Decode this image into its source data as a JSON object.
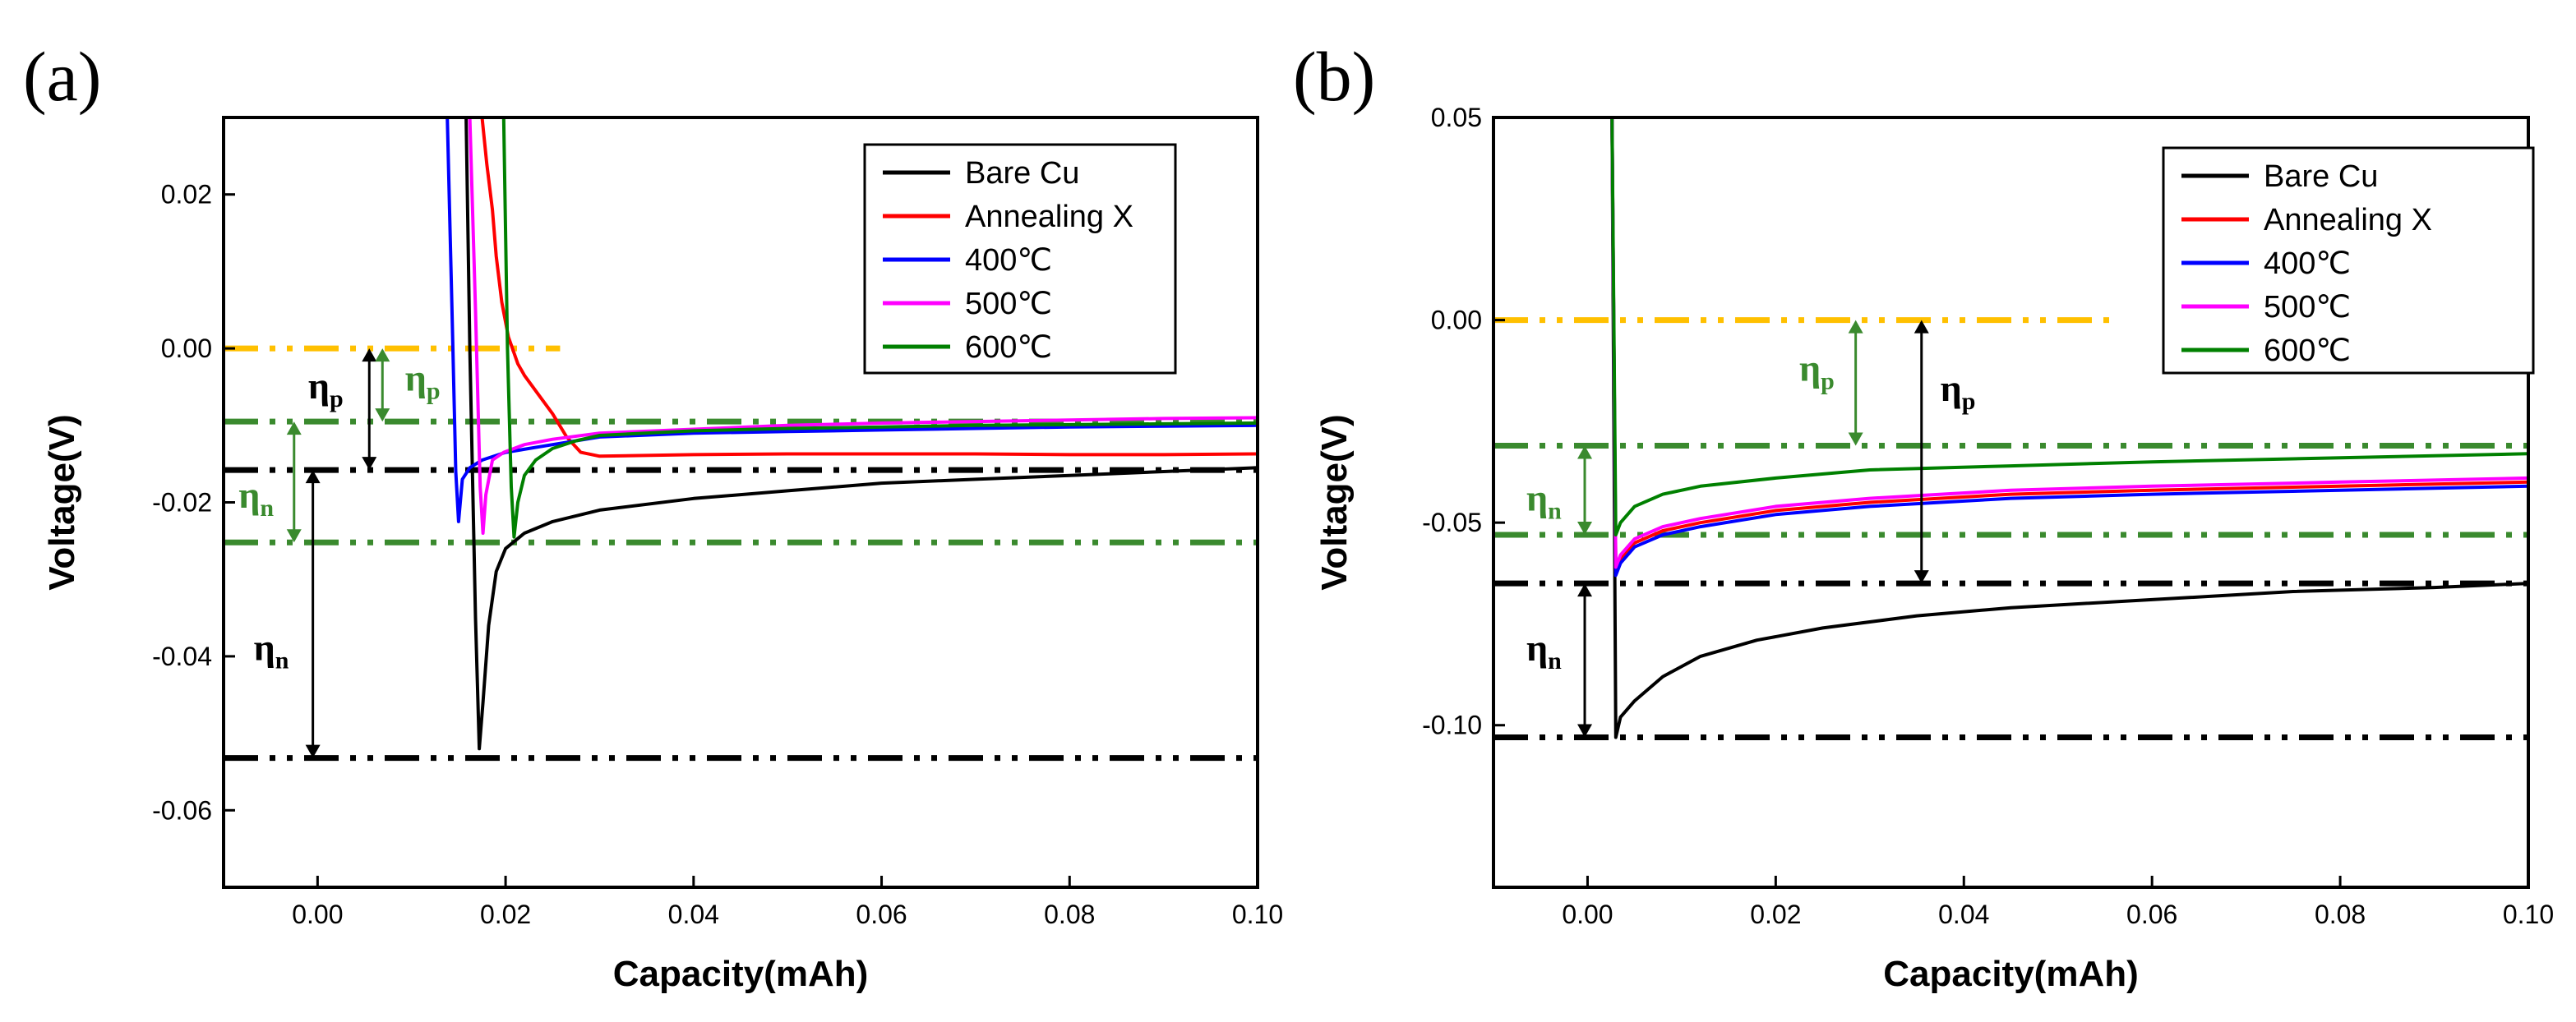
{
  "colors": {
    "black": "#000000",
    "red": "#ff0000",
    "blue": "#0000ff",
    "magenta": "#ff00ff",
    "green": "#008000",
    "ref_zero": "#ffc000",
    "ref_green": "#3a8a2e",
    "ref_black": "#000000",
    "eta_green": "#3a8a2e"
  },
  "chart_data": [
    {
      "type": "line",
      "panel_label": "(a)",
      "xlabel": "Capacity(mAh)",
      "ylabel": "Voltage(V)",
      "xlim": [
        -0.01,
        0.1
      ],
      "ylim": [
        -0.07,
        0.03
      ],
      "xticks": [
        0.0,
        0.02,
        0.04,
        0.06,
        0.08,
        0.1
      ],
      "xtick_labels": [
        "0.00",
        "0.02",
        "0.04",
        "0.06",
        "0.08",
        "0.10"
      ],
      "yticks": [
        0.02,
        0.0,
        -0.02,
        -0.04,
        -0.06
      ],
      "ytick_labels": [
        "0.02",
        "0.00",
        "-0.02",
        "-0.04",
        "-0.06"
      ],
      "legend": [
        "Bare Cu",
        "Annealing X",
        "400℃",
        "500℃",
        "600℃"
      ],
      "series": [
        {
          "name": "Bare Cu",
          "color": "#000000",
          "x": [
            0.0158,
            0.0162,
            0.0168,
            0.0172,
            0.0176,
            0.0182,
            0.019,
            0.02,
            0.022,
            0.025,
            0.03,
            0.04,
            0.05,
            0.06,
            0.07,
            0.08,
            0.09,
            0.1
          ],
          "y": [
            0.03,
            0.0,
            -0.035,
            -0.052,
            -0.046,
            -0.036,
            -0.029,
            -0.026,
            -0.024,
            -0.0225,
            -0.021,
            -0.0195,
            -0.0185,
            -0.0175,
            -0.017,
            -0.0165,
            -0.016,
            -0.0155
          ]
        },
        {
          "name": "Annealing X",
          "color": "#ff0000",
          "x": [
            0.0175,
            0.018,
            0.0186,
            0.019,
            0.0196,
            0.0203,
            0.0213,
            0.022,
            0.0235,
            0.025,
            0.0265,
            0.028,
            0.03,
            0.04,
            0.05,
            0.06,
            0.07,
            0.08,
            0.09,
            0.1
          ],
          "y": [
            0.03,
            0.024,
            0.018,
            0.012,
            0.006,
            0.0015,
            -0.002,
            -0.0035,
            -0.006,
            -0.0085,
            -0.0115,
            -0.0135,
            -0.014,
            -0.0138,
            -0.0137,
            -0.0137,
            -0.0137,
            -0.0138,
            -0.0138,
            -0.0137
          ]
        },
        {
          "name": "400℃",
          "color": "#0000ff",
          "x": [
            0.0138,
            0.0143,
            0.0147,
            0.015,
            0.0154,
            0.0162,
            0.0175,
            0.02,
            0.025,
            0.03,
            0.04,
            0.05,
            0.06,
            0.07,
            0.08,
            0.09,
            0.1
          ],
          "y": [
            0.03,
            0.005,
            -0.016,
            -0.0225,
            -0.017,
            -0.0155,
            -0.0145,
            -0.0135,
            -0.0125,
            -0.0115,
            -0.011,
            -0.0108,
            -0.0106,
            -0.0104,
            -0.0102,
            -0.0101,
            -0.01
          ]
        },
        {
          "name": "500℃",
          "color": "#ff00ff",
          "x": [
            0.0162,
            0.0168,
            0.0173,
            0.0176,
            0.0179,
            0.0186,
            0.0198,
            0.022,
            0.025,
            0.03,
            0.04,
            0.05,
            0.06,
            0.07,
            0.08,
            0.09,
            0.1
          ],
          "y": [
            0.03,
            0.005,
            -0.018,
            -0.024,
            -0.019,
            -0.0145,
            -0.0135,
            -0.0125,
            -0.0118,
            -0.011,
            -0.0105,
            -0.01,
            -0.0097,
            -0.0095,
            -0.0093,
            -0.0091,
            -0.009
          ]
        },
        {
          "name": "600℃",
          "color": "#008000",
          "x": [
            0.0198,
            0.0202,
            0.0206,
            0.0209,
            0.0213,
            0.022,
            0.0232,
            0.025,
            0.0275,
            0.03,
            0.04,
            0.05,
            0.06,
            0.07,
            0.08,
            0.09,
            0.1
          ],
          "y": [
            0.03,
            0.0,
            -0.018,
            -0.0245,
            -0.02,
            -0.0165,
            -0.0145,
            -0.013,
            -0.012,
            -0.0113,
            -0.0107,
            -0.0104,
            -0.0102,
            -0.01,
            -0.0099,
            -0.0098,
            -0.0097
          ]
        }
      ],
      "reference_lines": [
        {
          "y": 0.0,
          "color": "#ffc000",
          "x_end": 0.0258
        },
        {
          "y": -0.0095,
          "color": "#3a8a2e",
          "x_end": 0.1
        },
        {
          "y": -0.0158,
          "color": "#000000",
          "x_end": 0.1
        },
        {
          "y": -0.0252,
          "color": "#3a8a2e",
          "x_end": 0.1
        },
        {
          "y": -0.0532,
          "color": "#000000",
          "x_end": 0.1
        }
      ],
      "annotations": [
        {
          "base": "η",
          "sub": "p",
          "color": "#000000",
          "arrow_x": 0.0055,
          "y1": 0.0,
          "y2": -0.0158,
          "label_x": -0.001,
          "label_y": -0.0065
        },
        {
          "base": "η",
          "sub": "p",
          "color": "#3a8a2e",
          "arrow_x": 0.0069,
          "y1": 0.0,
          "y2": -0.0095,
          "label_x": 0.0093,
          "label_y": -0.0055
        },
        {
          "base": "η",
          "sub": "n",
          "color": "#3a8a2e",
          "arrow_x": -0.0025,
          "y1": -0.0095,
          "y2": -0.0252,
          "label_x": -0.0084,
          "label_y": -0.0207
        },
        {
          "base": "η",
          "sub": "n",
          "color": "#000000",
          "arrow_x": -0.0005,
          "y1": -0.0158,
          "y2": -0.0532,
          "label_x": -0.0068,
          "label_y": -0.0405
        }
      ]
    },
    {
      "type": "line",
      "panel_label": "(b)",
      "xlabel": "Capacity(mAh)",
      "ylabel": "Voltage(V)",
      "xlim": [
        -0.01,
        0.1
      ],
      "ylim": [
        -0.14,
        0.05
      ],
      "xticks": [
        0.0,
        0.02,
        0.04,
        0.06,
        0.08,
        0.1
      ],
      "xtick_labels": [
        "0.00",
        "0.02",
        "0.04",
        "0.06",
        "0.08",
        "0.10"
      ],
      "yticks": [
        0.05,
        0.0,
        -0.05,
        -0.1
      ],
      "ytick_labels": [
        "0.05",
        "0.00",
        "-0.05",
        "-0.10"
      ],
      "legend": [
        "Bare Cu",
        "Annealing X",
        "400℃",
        "500℃",
        "600℃"
      ],
      "series": [
        {
          "name": "Bare Cu",
          "color": "#000000",
          "x": [
            0.0026,
            0.003,
            0.0035,
            0.005,
            0.008,
            0.012,
            0.018,
            0.025,
            0.035,
            0.045,
            0.06,
            0.075,
            0.09,
            0.1
          ],
          "y": [
            0.05,
            -0.103,
            -0.098,
            -0.094,
            -0.088,
            -0.083,
            -0.079,
            -0.076,
            -0.073,
            -0.071,
            -0.069,
            -0.067,
            -0.066,
            -0.065
          ]
        },
        {
          "name": "Annealing X",
          "color": "#ff0000",
          "x": [
            0.0026,
            0.003,
            0.0035,
            0.005,
            0.008,
            0.012,
            0.02,
            0.03,
            0.045,
            0.06,
            0.08,
            0.1
          ],
          "y": [
            0.05,
            -0.062,
            -0.059,
            -0.055,
            -0.052,
            -0.05,
            -0.047,
            -0.045,
            -0.043,
            -0.042,
            -0.041,
            -0.04
          ]
        },
        {
          "name": "400℃",
          "color": "#0000ff",
          "x": [
            0.0026,
            0.003,
            0.0035,
            0.005,
            0.008,
            0.012,
            0.02,
            0.03,
            0.045,
            0.06,
            0.08,
            0.1
          ],
          "y": [
            0.05,
            -0.063,
            -0.06,
            -0.056,
            -0.053,
            -0.051,
            -0.048,
            -0.046,
            -0.044,
            -0.043,
            -0.042,
            -0.041
          ]
        },
        {
          "name": "500℃",
          "color": "#ff00ff",
          "x": [
            0.0026,
            0.003,
            0.0035,
            0.005,
            0.008,
            0.012,
            0.02,
            0.03,
            0.045,
            0.06,
            0.08,
            0.1
          ],
          "y": [
            0.05,
            -0.061,
            -0.058,
            -0.054,
            -0.051,
            -0.049,
            -0.046,
            -0.044,
            -0.042,
            -0.041,
            -0.04,
            -0.039
          ]
        },
        {
          "name": "600℃",
          "color": "#008000",
          "x": [
            0.0026,
            0.003,
            0.0035,
            0.005,
            0.008,
            0.012,
            0.02,
            0.03,
            0.045,
            0.06,
            0.08,
            0.1
          ],
          "y": [
            0.05,
            -0.053,
            -0.05,
            -0.046,
            -0.043,
            -0.041,
            -0.039,
            -0.037,
            -0.036,
            -0.035,
            -0.034,
            -0.033
          ]
        }
      ],
      "reference_lines": [
        {
          "y": 0.0,
          "color": "#ffc000",
          "x_end": 0.0555
        },
        {
          "y": -0.031,
          "color": "#3a8a2e",
          "x_end": 0.1
        },
        {
          "y": -0.053,
          "color": "#3a8a2e",
          "x_end": 0.1
        },
        {
          "y": -0.065,
          "color": "#000000",
          "x_end": 0.1
        },
        {
          "y": -0.103,
          "color": "#000000",
          "x_end": 0.1
        }
      ],
      "annotations": [
        {
          "base": "η",
          "sub": "p",
          "color": "#3a8a2e",
          "arrow_x": 0.0285,
          "y1": 0.0,
          "y2": -0.031,
          "label_x": 0.0225,
          "label_y": -0.015
        },
        {
          "base": "η",
          "sub": "p",
          "color": "#000000",
          "arrow_x": 0.0355,
          "y1": 0.0,
          "y2": -0.065,
          "label_x": 0.0375,
          "label_y": -0.02
        },
        {
          "base": "η",
          "sub": "n",
          "color": "#3a8a2e",
          "arrow_x": -0.0003,
          "y1": -0.031,
          "y2": -0.053,
          "label_x": -0.0065,
          "label_y": -0.047
        },
        {
          "base": "η",
          "sub": "n",
          "color": "#000000",
          "arrow_x": -0.0003,
          "y1": -0.065,
          "y2": -0.103,
          "label_x": -0.0065,
          "label_y": -0.084
        }
      ]
    }
  ]
}
